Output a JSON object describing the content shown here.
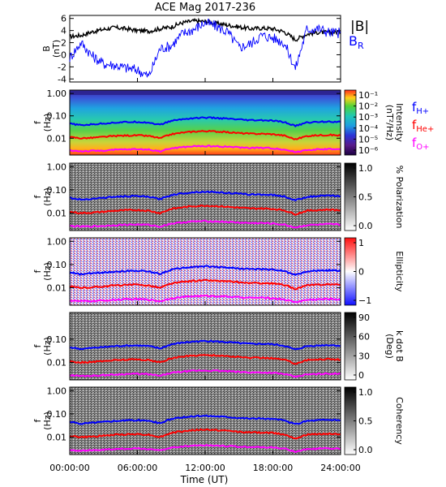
{
  "title": "ACE Mag 2017-236",
  "chart_data": [
    {
      "type": "line",
      "panel": "magnetic-field",
      "ylabel_main": "B",
      "ylabel_unit": "(nT)",
      "ylim": [
        -4.5,
        6.5
      ],
      "yticks": [
        -4,
        -2,
        0,
        2,
        4,
        6
      ],
      "x_hours": [
        0,
        1,
        2,
        3,
        4,
        5,
        6,
        7,
        8,
        9,
        10,
        11,
        12,
        13,
        14,
        15,
        16,
        17,
        18,
        19,
        20,
        21,
        22,
        23,
        24
      ],
      "legend": [
        "|B|",
        "B_R"
      ],
      "series": [
        {
          "name": "|B|",
          "color": "#000000",
          "values": [
            3.0,
            3.2,
            3.8,
            4.2,
            4.5,
            4.3,
            4.0,
            3.9,
            4.3,
            4.6,
            5.3,
            5.6,
            5.5,
            5.2,
            4.9,
            4.6,
            4.3,
            4.4,
            4.3,
            3.8,
            2.5,
            3.4,
            3.7,
            3.7,
            3.8
          ]
        },
        {
          "name": "B_R",
          "color": "#0000ff",
          "values": [
            -0.5,
            2.0,
            -0.2,
            -1.5,
            -1.7,
            -2.2,
            -2.5,
            -3.6,
            1.0,
            1.5,
            3.5,
            4.2,
            5.3,
            4.7,
            3.7,
            1.2,
            1.8,
            3.2,
            2.8,
            2.0,
            -2.3,
            4.2,
            4.3,
            3.7,
            3.6
          ]
        }
      ]
    },
    {
      "type": "heatmap",
      "panel": "intensity",
      "ylabel_main": "f",
      "ylabel_unit": "(Hz)",
      "yticks": [
        "1.00",
        "0.10",
        "0.01"
      ],
      "colorbar_label_1": "Intensity",
      "colorbar_label_2": "(nT²/Hz)",
      "colorbar_ticks": [
        "10⁻¹",
        "10⁻²",
        "10⁻³",
        "10⁻⁴",
        "10⁻⁵",
        "10⁻⁶"
      ],
      "legend": [
        "f_H+",
        "f_He+",
        "f_O+"
      ]
    },
    {
      "type": "heatmap",
      "panel": "polarization",
      "ylabel_main": "f",
      "ylabel_unit": "(Hz)",
      "yticks": [
        "1.00",
        "0.10",
        "0.01"
      ],
      "colorbar_label_1": "% Polarization",
      "colorbar_ticks": [
        "1.0",
        "0.5",
        "0.0"
      ]
    },
    {
      "type": "heatmap",
      "panel": "ellipticity",
      "ylabel_main": "f",
      "ylabel_unit": "(Hz)",
      "yticks": [
        "1.00",
        "0.10",
        "0.01"
      ],
      "colorbar_label_1": "Ellipticity",
      "colorbar_ticks": [
        "1",
        "0",
        "−1"
      ]
    },
    {
      "type": "heatmap",
      "panel": "k-dot-b",
      "ylabel_main": "f",
      "ylabel_unit": "(Hz)",
      "yticks": [
        "0.10",
        "0.01"
      ],
      "colorbar_label_1": "k dot B",
      "colorbar_label_2": "(Deg)",
      "colorbar_ticks": [
        "90",
        "60",
        "30",
        "0"
      ]
    },
    {
      "type": "heatmap",
      "panel": "coherency",
      "ylabel_main": "f",
      "ylabel_unit": "(Hz)",
      "yticks": [
        "1.00",
        "0.10",
        "0.01"
      ],
      "colorbar_label_1": "Coherency",
      "colorbar_ticks": [
        "1.0",
        "0.5",
        "0.0"
      ]
    }
  ],
  "xaxis": {
    "ticks": [
      "00:00:00",
      "06:00:00",
      "12:00:00",
      "18:00:00",
      "24:00:00"
    ],
    "label": "Time (UT)"
  },
  "gyro_lines": {
    "f_H+": {
      "color": "#0000ff",
      "log10_hz": [
        -1.35,
        -1.42,
        -1.38,
        -1.34,
        -1.3,
        -1.28,
        -1.27,
        -1.3,
        -1.4,
        -1.22,
        -1.15,
        -1.1,
        -1.08,
        -1.1,
        -1.13,
        -1.17,
        -1.2,
        -1.2,
        -1.22,
        -1.28,
        -1.45,
        -1.3,
        -1.27,
        -1.25,
        -1.28
      ]
    },
    "f_He+": {
      "color": "#ff0000",
      "log10_hz": [
        -1.95,
        -2.0,
        -1.98,
        -1.94,
        -1.9,
        -1.88,
        -1.87,
        -1.9,
        -2.0,
        -1.82,
        -1.75,
        -1.7,
        -1.68,
        -1.7,
        -1.73,
        -1.77,
        -1.8,
        -1.8,
        -1.82,
        -1.88,
        -2.05,
        -1.9,
        -1.87,
        -1.85,
        -1.88
      ]
    },
    "f_O+": {
      "color": "#ff00ff",
      "log10_hz": [
        -2.55,
        -2.58,
        -2.57,
        -2.55,
        -2.52,
        -2.5,
        -2.49,
        -2.51,
        -2.58,
        -2.45,
        -2.4,
        -2.36,
        -2.35,
        -2.36,
        -2.38,
        -2.41,
        -2.43,
        -2.43,
        -2.45,
        -2.5,
        -2.62,
        -2.52,
        -2.5,
        -2.48,
        -2.5
      ]
    }
  }
}
